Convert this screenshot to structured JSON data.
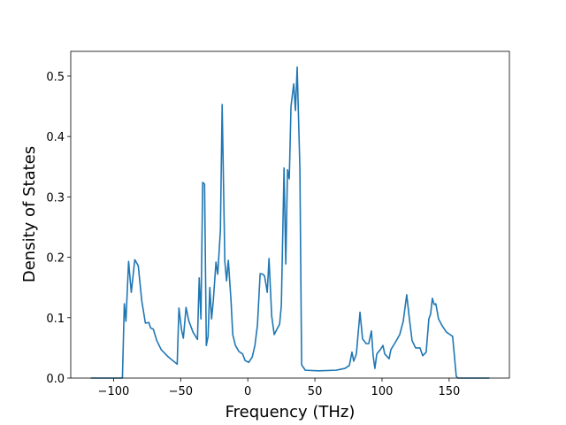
{
  "chart_data": {
    "type": "line",
    "xlabel": "Frequency (THz)",
    "ylabel": "Density of States",
    "xlim": [
      -131.9,
      194.9
    ],
    "ylim": [
      0,
      0.541
    ],
    "xticks": [
      {
        "value": -100,
        "label": "−100"
      },
      {
        "value": -50,
        "label": "−50"
      },
      0,
      50,
      100,
      150
    ],
    "yticks": [
      {
        "value": 0,
        "label": "0.0"
      },
      0.1,
      0.2,
      0.3,
      0.4,
      0.5
    ],
    "color": "#1f77b4",
    "x": [
      -117,
      -93.4,
      -92,
      -90.8,
      -88.8,
      -86.8,
      -84.2,
      -81.6,
      -79,
      -76.3,
      -73.7,
      -72.4,
      -70.4,
      -67.8,
      -64.5,
      -59.2,
      -52.6,
      -51.3,
      -49.3,
      -48,
      -46,
      -44,
      -40.8,
      -37.5,
      -36.2,
      -34.9,
      -33.6,
      -32.2,
      -30.9,
      -29.6,
      -28.3,
      -27,
      -25.7,
      -23.7,
      -22.4,
      -20.4,
      -19.1,
      -17.1,
      -15.8,
      -14.5,
      -12.5,
      -11.2,
      -9.2,
      -6.6,
      -3.9,
      -2,
      0.7,
      3.3,
      5.3,
      7.2,
      9.2,
      11.2,
      12.5,
      14.5,
      15.8,
      17.8,
      19.7,
      21.7,
      23.7,
      25,
      27,
      28.3,
      29.6,
      30.9,
      32.2,
      34.2,
      35.5,
      36.8,
      38.8,
      40.1,
      42.8,
      52.6,
      65.8,
      72.4,
      75.7,
      77.6,
      78.9,
      80.9,
      83.6,
      85.5,
      88.2,
      90.1,
      92.1,
      93.4,
      94.7,
      96.1,
      98.7,
      100.7,
      102,
      105.3,
      106.6,
      109.9,
      113.2,
      115.8,
      118.4,
      120.4,
      122.4,
      125,
      128.3,
      130.3,
      132.9,
      134.9,
      136.2,
      137.5,
      138.8,
      140.1,
      142.1,
      144.7,
      148,
      150.7,
      152.6,
      155.3,
      156.6,
      180
    ],
    "values": [
      0,
      0,
      0.123,
      0.094,
      0.193,
      0.142,
      0.196,
      0.186,
      0.128,
      0.091,
      0.092,
      0.083,
      0.081,
      0.062,
      0.047,
      0.035,
      0.023,
      0.116,
      0.079,
      0.066,
      0.117,
      0.095,
      0.076,
      0.064,
      0.166,
      0.098,
      0.324,
      0.321,
      0.054,
      0.069,
      0.15,
      0.098,
      0.128,
      0.192,
      0.172,
      0.245,
      0.453,
      0.193,
      0.161,
      0.195,
      0.128,
      0.072,
      0.054,
      0.044,
      0.04,
      0.029,
      0.026,
      0.035,
      0.054,
      0.088,
      0.173,
      0.172,
      0.169,
      0.142,
      0.198,
      0.103,
      0.072,
      0.081,
      0.089,
      0.12,
      0.348,
      0.189,
      0.345,
      0.33,
      0.45,
      0.487,
      0.443,
      0.515,
      0.348,
      0.022,
      0.013,
      0.012,
      0.013,
      0.016,
      0.021,
      0.043,
      0.028,
      0.04,
      0.109,
      0.065,
      0.057,
      0.057,
      0.078,
      0.037,
      0.016,
      0.04,
      0.047,
      0.054,
      0.04,
      0.032,
      0.047,
      0.059,
      0.072,
      0.094,
      0.138,
      0.098,
      0.062,
      0.05,
      0.05,
      0.037,
      0.043,
      0.098,
      0.106,
      0.132,
      0.122,
      0.123,
      0.098,
      0.087,
      0.076,
      0.072,
      0.069,
      0.003,
      0,
      0
    ]
  }
}
